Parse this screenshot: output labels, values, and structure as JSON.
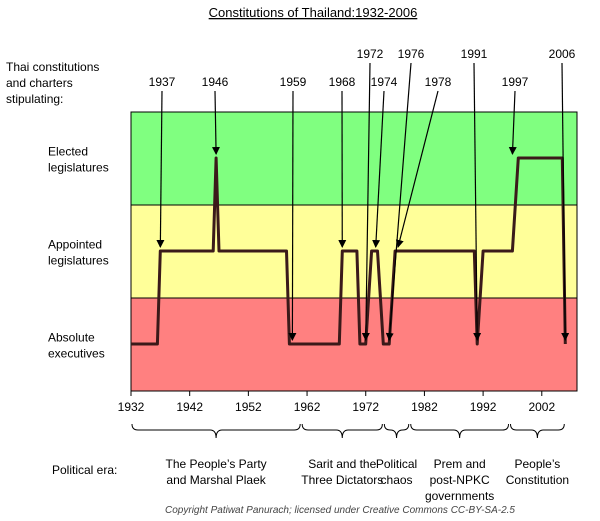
{
  "title": "Constitutions of Thailand:1932-2006",
  "left_header": [
    "Thai constitutions",
    "and charters",
    "stipulating:"
  ],
  "bands": [
    {
      "label": [
        "Elected",
        "legislatures"
      ],
      "color": "#80ff80"
    },
    {
      "label": [
        "Appointed",
        "legislatures"
      ],
      "color": "#ffff99"
    },
    {
      "label": [
        "Absolute",
        "executives"
      ],
      "color": "#ff8080"
    }
  ],
  "x_axis": {
    "min": 1932,
    "max": 2008,
    "ticks": [
      1932,
      1942,
      1952,
      1962,
      1972,
      1982,
      1992,
      2002
    ]
  },
  "chart_data": {
    "type": "line",
    "title": "Constitutions of Thailand:1932-2006",
    "xlabel": "",
    "ylabel": "Thai constitutions and charters stipulating:",
    "y_categories": [
      "Absolute executives",
      "Appointed legislatures",
      "Elected legislatures"
    ],
    "x": [
      1932,
      1936.5,
      1937,
      1946,
      1946.5,
      1947,
      1958.5,
      1959,
      1967.5,
      1968,
      1970.5,
      1971,
      1972,
      1973,
      1973.5,
      1974,
      1975,
      1976,
      1977,
      1978,
      1990.5,
      1991,
      1992,
      1997,
      1998,
      2005.5,
      2006
    ],
    "values": [
      0,
      0,
      1,
      1,
      2,
      1,
      1,
      0,
      0,
      1,
      1,
      0,
      0,
      1,
      1,
      1,
      0,
      0,
      1,
      1,
      1,
      0,
      1,
      1,
      2,
      2,
      0
    ]
  },
  "annotations": [
    {
      "label": "1937",
      "year": 1937,
      "level": 1
    },
    {
      "label": "1946",
      "year": 1946.5,
      "level": 2
    },
    {
      "label": "1959",
      "year": 1959.5,
      "level": 0
    },
    {
      "label": "1968",
      "year": 1968,
      "level": 1
    },
    {
      "label": "1972",
      "year": 1972,
      "level": 0
    },
    {
      "label": "1974",
      "year": 1973.7,
      "level": 1
    },
    {
      "label": "1976",
      "year": 1976,
      "level": 0
    },
    {
      "label": "1978",
      "year": 1977.5,
      "level": 1
    },
    {
      "label": "1991",
      "year": 1991,
      "level": 0
    },
    {
      "label": "1997",
      "year": 1997,
      "level": 2
    },
    {
      "label": "2006",
      "year": 2006,
      "level": 0
    }
  ],
  "eras_label": "Political era:",
  "eras": [
    {
      "name": [
        "The People’s Party",
        "and Marshal Plaek"
      ],
      "start": 1932,
      "end": 1961
    },
    {
      "name": [
        "Sarit and the",
        "Three Dictators"
      ],
      "start": 1961,
      "end": 1975
    },
    {
      "name": [
        "Political",
        "chaos"
      ],
      "start": 1975,
      "end": 1979.5
    },
    {
      "name": [
        "Prem and",
        "post-NPKC",
        "governments"
      ],
      "start": 1979.5,
      "end": 1996.5
    },
    {
      "name": [
        "People’s",
        "Constitution"
      ],
      "start": 1996.5,
      "end": 2006
    }
  ],
  "copyright": "Copyright Patiwat Panurach; licensed under Creative Commons CC-BY-SA-2.5"
}
